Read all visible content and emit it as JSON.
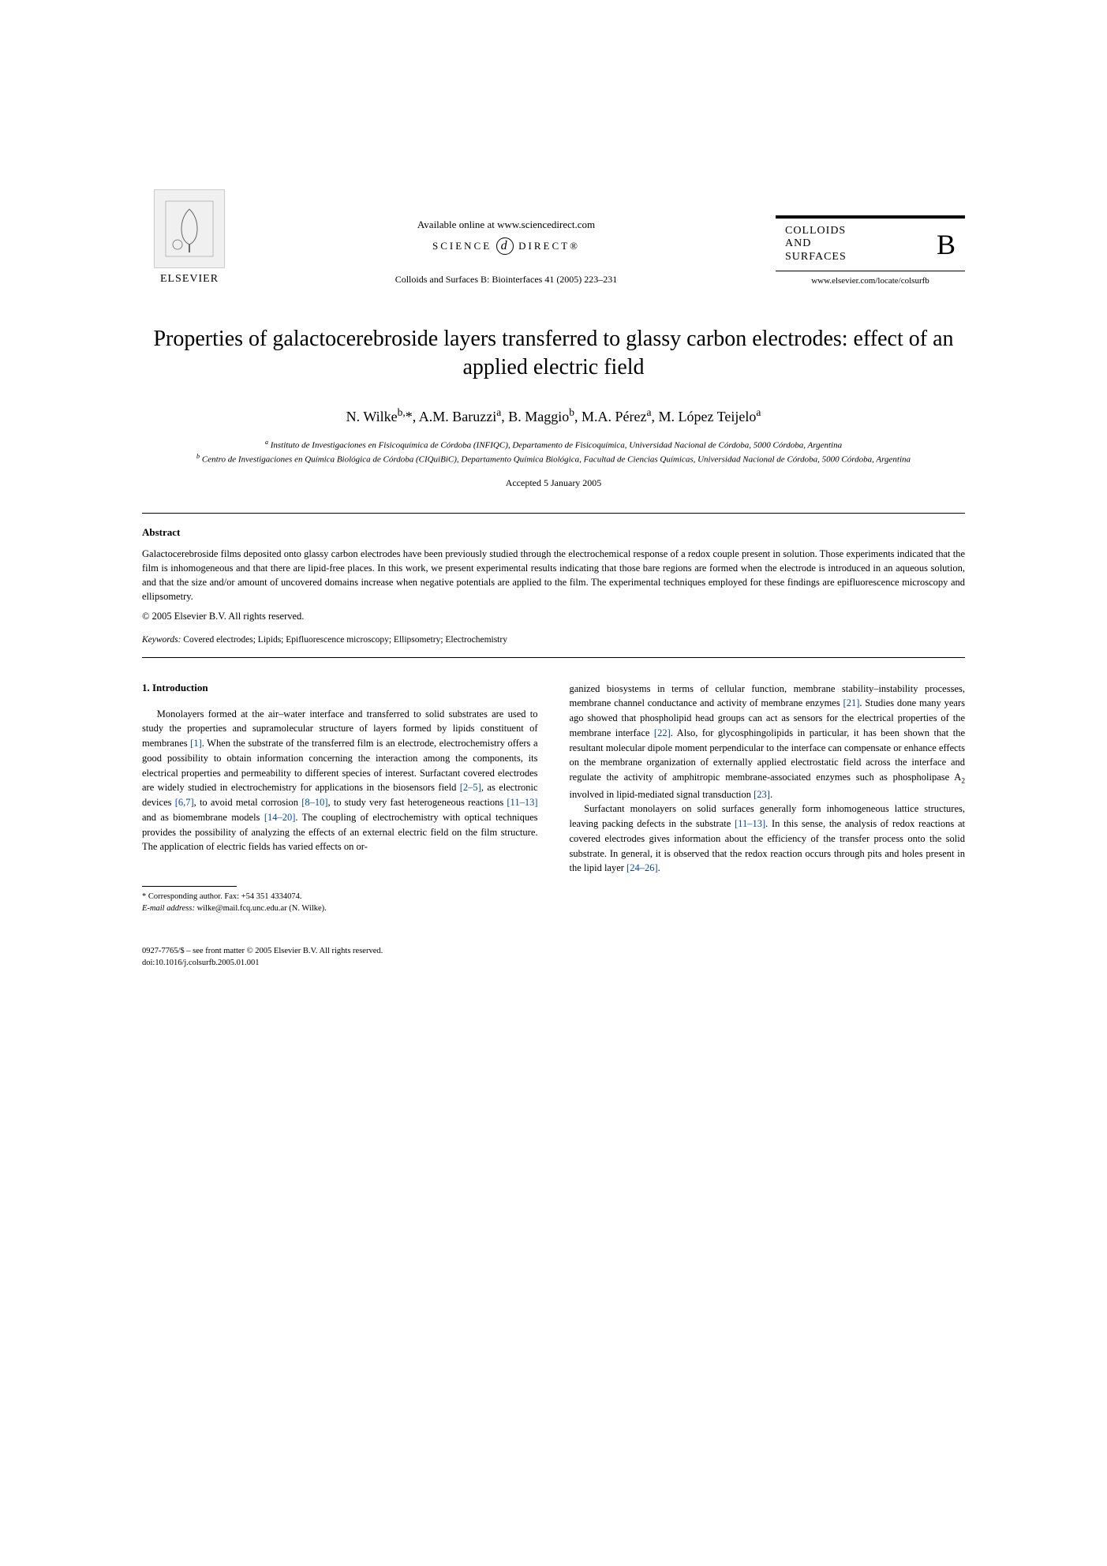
{
  "header": {
    "elsevier": "ELSEVIER",
    "available": "Available online at www.sciencedirect.com",
    "scidirect_left": "SCIENCE",
    "scidirect_right": "DIRECT®",
    "journal_ref": "Colloids and Surfaces B: Biointerfaces 41 (2005) 223–231",
    "journal_name_l1": "COLLOIDS",
    "journal_name_l2": "AND",
    "journal_name_l3": "SURFACES",
    "journal_b": "B",
    "journal_url": "www.elsevier.com/locate/colsurfb"
  },
  "title": "Properties of galactocerebroside layers transferred to glassy carbon electrodes: effect of an applied electric field",
  "authors_html": "N. Wilke<sup>b,</sup>*, A.M. Baruzzi<sup>a</sup>, B. Maggio<sup>b</sup>, M.A. Pérez<sup>a</sup>, M. López Teijelo<sup>a</sup>",
  "affiliations": {
    "a": "Instituto de Investigaciones en Fisicoquímica de Córdoba (INFIQC), Departamento de Fisicoquímica, Universidad Nacional de Córdoba, 5000 Córdoba, Argentina",
    "b": "Centro de Investigaciones en Química Biológica de Córdoba (CIQuiBiC), Departamento Química Biológica, Facultad de Ciencias Químicas, Universidad Nacional de Córdoba, 5000 Córdoba, Argentina"
  },
  "accepted": "Accepted 5 January 2005",
  "abstract_label": "Abstract",
  "abstract_text": "Galactocerebroside films deposited onto glassy carbon electrodes have been previously studied through the electrochemical response of a redox couple present in solution. Those experiments indicated that the film is inhomogeneous and that there are lipid-free places. In this work, we present experimental results indicating that those bare regions are formed when the electrode is introduced in an aqueous solution, and that the size and/or amount of uncovered domains increase when negative potentials are applied to the film. The experimental techniques employed for these findings are epifluorescence microscopy and ellipsometry.",
  "copyright": "© 2005 Elsevier B.V. All rights reserved.",
  "keywords_label": "Keywords:",
  "keywords": " Covered electrodes; Lipids; Epifluorescence microscopy; Ellipsometry; Electrochemistry",
  "section1_head": "1. Introduction",
  "para1_html": "Monolayers formed at the air–water interface and transferred to solid substrates are used to study the properties and supramolecular structure of layers formed by lipids constituent of membranes <span class=\"ref-link\">[1]</span>. When the substrate of the transferred film is an electrode, electrochemistry offers a good possibility to obtain information concerning the interaction among the components, its electrical properties and permeability to different species of interest. Surfactant covered electrodes are widely studied in electrochemistry for applications in the biosensors field <span class=\"ref-link\">[2–5]</span>, as electronic devices <span class=\"ref-link\">[6,7]</span>, to avoid metal corrosion <span class=\"ref-link\">[8–10]</span>, to study very fast heterogeneous reactions <span class=\"ref-link\">[11–13]</span> and as biomembrane models <span class=\"ref-link\">[14–20]</span>. The coupling of electrochemistry with optical techniques provides the possibility of analyzing the effects of an external electric field on the film structure. The application of electric fields has varied effects on or-",
  "para2_html": "ganized biosystems in terms of cellular function, membrane stability–instability processes, membrane channel conductance and activity of membrane enzymes <span class=\"ref-link\">[21]</span>. Studies done many years ago showed that phospholipid head groups can act as sensors for the electrical properties of the membrane interface <span class=\"ref-link\">[22]</span>. Also, for glycosphingolipids in particular, it has been shown that the resultant molecular dipole moment perpendicular to the interface can compensate or enhance effects on the membrane organization of externally applied electrostatic field across the interface and regulate the activity of amphitropic membrane-associated enzymes such as phospholipase A<sub>2</sub> involved in lipid-mediated signal transduction <span class=\"ref-link\">[23]</span>.",
  "para3_html": "Surfactant monolayers on solid surfaces generally form inhomogeneous lattice structures, leaving packing defects in the substrate <span class=\"ref-link\">[11–13]</span>. In this sense, the analysis of redox reactions at covered electrodes gives information about the efficiency of the transfer process onto the solid substrate. In general, it is observed that the redox reaction occurs through pits and holes present in the lipid layer <span class=\"ref-link\">[24–26]</span>.",
  "footnote": {
    "corr": "* Corresponding author. Fax: +54 351 4334074.",
    "email_label": "E-mail address:",
    "email": " wilke@mail.fcq.unc.edu.ar (N. Wilke)."
  },
  "doi": {
    "line1": "0927-7765/$ – see front matter © 2005 Elsevier B.V. All rights reserved.",
    "line2": "doi:10.1016/j.colsurfb.2005.01.001"
  },
  "colors": {
    "text": "#000000",
    "link": "#0645ad",
    "background": "#ffffff"
  },
  "typography": {
    "title_fontsize": 28,
    "authors_fontsize": 18,
    "body_fontsize": 12.5,
    "footnote_fontsize": 10.5,
    "font_family": "Georgia, Times New Roman, serif"
  }
}
